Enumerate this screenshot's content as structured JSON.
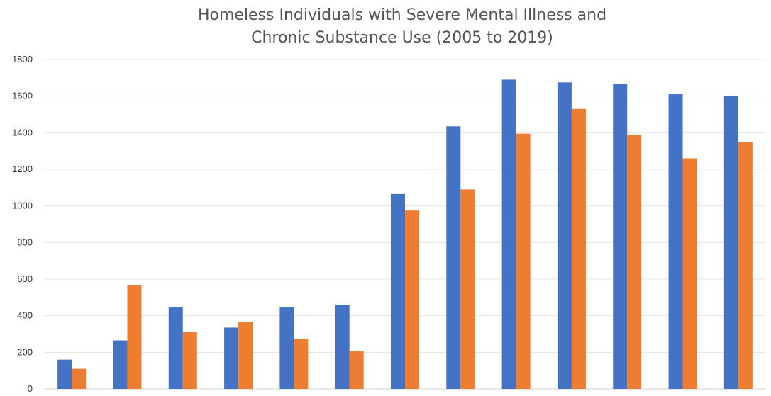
{
  "chart_data": {
    "type": "bar",
    "title_lines": [
      "Homeless Individuals with Severe Mental Illness and",
      "Chronic Substance Use (2005 to 2019)"
    ],
    "categories": [
      "",
      "",
      "",
      "",
      "",
      "",
      "",
      "",
      "",
      "",
      "",
      "",
      ""
    ],
    "series": [
      {
        "color": "#4472C4",
        "values": [
          160,
          265,
          445,
          335,
          445,
          460,
          1065,
          1435,
          1690,
          1675,
          1665,
          1610,
          1600
        ]
      },
      {
        "color": "#ED7D31",
        "values": [
          110,
          565,
          310,
          365,
          275,
          205,
          975,
          1090,
          1395,
          1530,
          1390,
          1260,
          1350
        ]
      }
    ],
    "ylim": [
      0,
      1800
    ],
    "yticks": [
      0,
      200,
      400,
      600,
      800,
      1000,
      1200,
      1400,
      1600,
      1800
    ],
    "grid": true,
    "legend": "none"
  }
}
